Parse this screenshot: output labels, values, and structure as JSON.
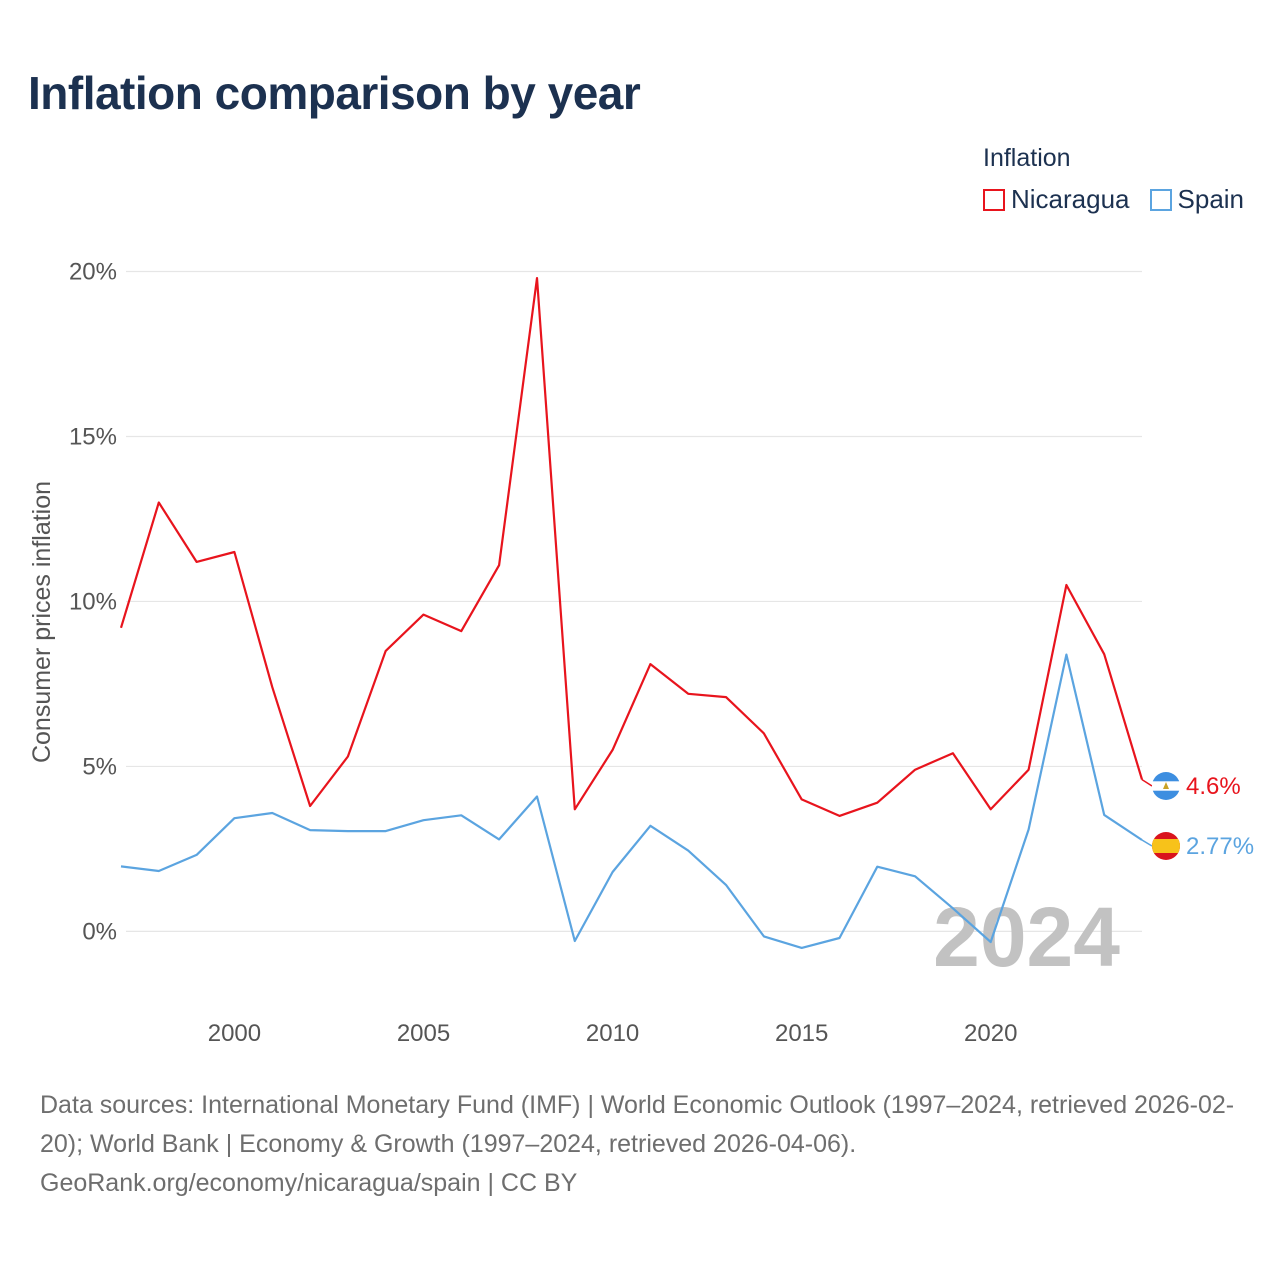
{
  "chart_data": {
    "type": "line",
    "title": "Inflation comparison by year",
    "legend_title": "Inflation",
    "ylabel": "Consumer prices inflation",
    "xlabel": "",
    "x": [
      1997,
      1998,
      1999,
      2000,
      2001,
      2002,
      2003,
      2004,
      2005,
      2006,
      2007,
      2008,
      2009,
      2010,
      2011,
      2012,
      2013,
      2014,
      2015,
      2016,
      2017,
      2018,
      2019,
      2020,
      2021,
      2022,
      2023,
      2024
    ],
    "xlim": [
      1997,
      2024
    ],
    "ylim": [
      -2.2,
      21.5
    ],
    "x_ticks": [
      2000,
      2005,
      2010,
      2015,
      2020
    ],
    "x_tick_labels": [
      "2000",
      "2005",
      "2010",
      "2015",
      "2020"
    ],
    "y_ticks": [
      0,
      5,
      10,
      15,
      20
    ],
    "y_tick_labels": [
      "0%",
      "5%",
      "10%",
      "15%",
      "20%"
    ],
    "grid": true,
    "legend_position": "top-right",
    "series": [
      {
        "name": "Nicaragua",
        "color": "#e8141d",
        "end_label": "4.6%",
        "flag": "nicaragua-flag-icon",
        "values": [
          9.2,
          13.0,
          11.2,
          11.5,
          7.4,
          3.8,
          5.3,
          8.5,
          9.6,
          9.1,
          11.1,
          19.8,
          3.7,
          5.5,
          8.1,
          7.2,
          7.1,
          6.0,
          4.0,
          3.5,
          3.9,
          4.9,
          5.4,
          3.7,
          4.9,
          10.5,
          8.4,
          4.6
        ]
      },
      {
        "name": "Spain",
        "color": "#5ba4e0",
        "end_label": "2.77%",
        "flag": "spain-flag-icon",
        "values": [
          1.97,
          1.83,
          2.32,
          3.43,
          3.59,
          3.07,
          3.04,
          3.04,
          3.37,
          3.52,
          2.79,
          4.09,
          -0.29,
          1.8,
          3.2,
          2.45,
          1.41,
          -0.15,
          -0.5,
          -0.2,
          1.96,
          1.67,
          0.7,
          -0.32,
          3.09,
          8.39,
          3.53,
          2.77
        ]
      }
    ],
    "watermark": "2024"
  },
  "footer": {
    "line1": "Data sources: International Monetary Fund (IMF) | World Economic Outlook (1997–2024, retrieved 2026-02-20); World Bank | Economy & Growth (1997–2024, retrieved 2026-04-06).",
    "line2": "GeoRank.org/economy/nicaragua/spain | CC BY"
  }
}
